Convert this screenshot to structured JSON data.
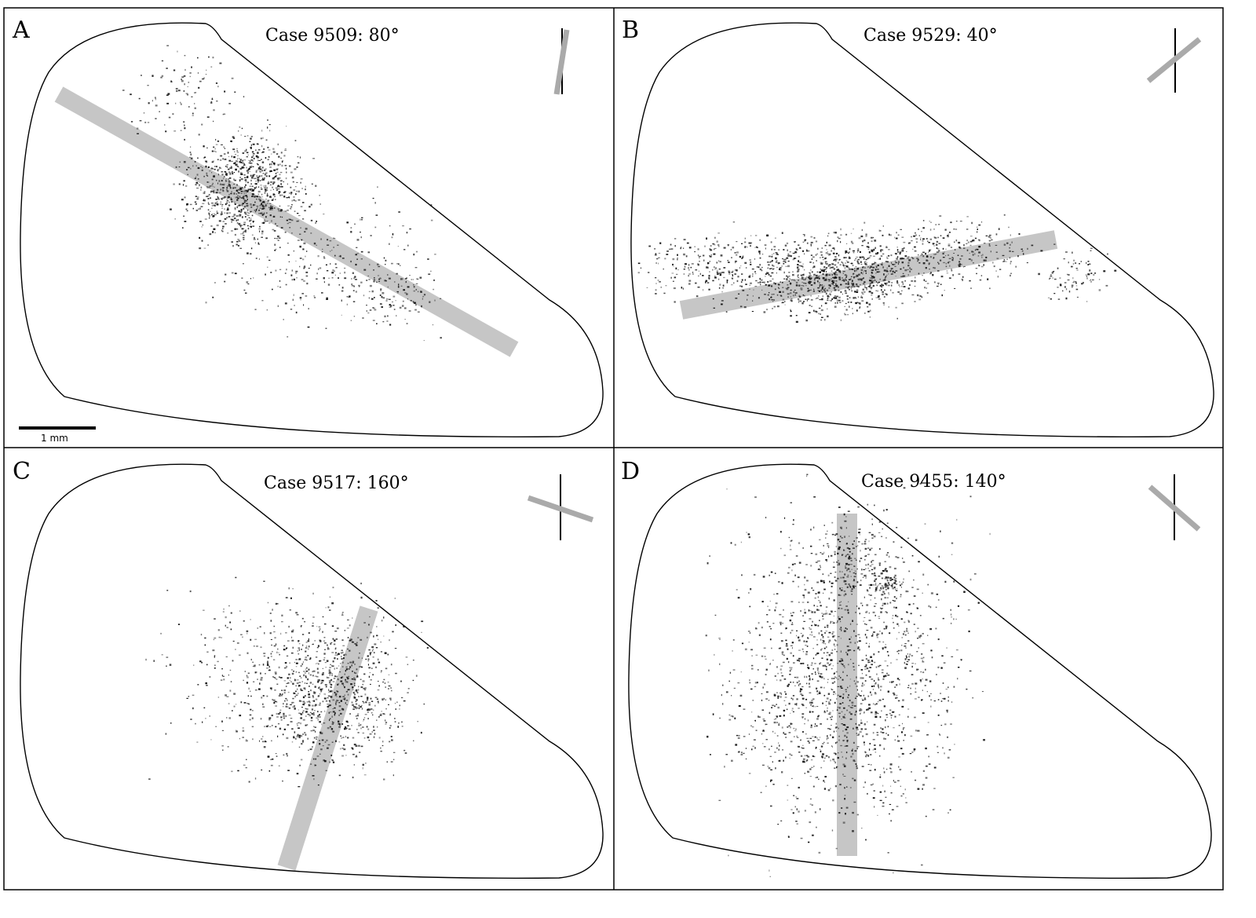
{
  "panels": [
    {
      "label": "A",
      "title": "Case 9509: 80°",
      "angle_deg": 80
    },
    {
      "label": "B",
      "title": "Case 9529: 40°",
      "angle_deg": 40
    },
    {
      "label": "C",
      "title": "Case 9517: 160°",
      "angle_deg": 160
    },
    {
      "label": "D",
      "title": "Case 9455: 140°",
      "angle_deg": 140
    }
  ],
  "scale_bar": {
    "label": "1 mm"
  },
  "colors": {
    "outline": "#000000",
    "injection_bar": "#bdbdbd",
    "axons": "#111111"
  }
}
